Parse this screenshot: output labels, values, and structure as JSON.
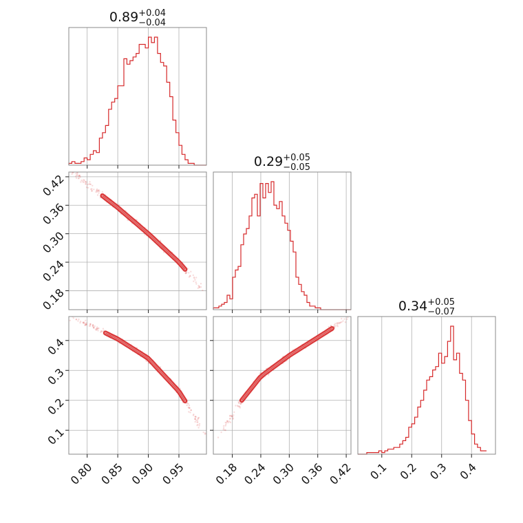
{
  "colors": {
    "accent": "#d62728",
    "grid": "#b0b0b0",
    "frame": "#888888"
  },
  "chart_data": {
    "type": "corner",
    "parameters": [
      {
        "summary": {
          "median": "0.89",
          "plus": "+0.04",
          "minus": "−0.04"
        },
        "range": [
          0.77,
          0.995
        ],
        "ticks": [
          0.8,
          0.85,
          0.9,
          0.95
        ],
        "tick_labels": [
          "0.80",
          "0.85",
          "0.90",
          "0.95"
        ],
        "hist": {
          "start": 0.77,
          "bin_width": 0.005,
          "counts": [
            1,
            2,
            1,
            1,
            2,
            4,
            3,
            6,
            8,
            7,
            15,
            18,
            22,
            31,
            35,
            37,
            44,
            44,
            59,
            56,
            58,
            60,
            62,
            67,
            67,
            65,
            71,
            68,
            71,
            62,
            57,
            55,
            46,
            38,
            25,
            18,
            11,
            6,
            3,
            1,
            1,
            0,
            0,
            0,
            0
          ]
        }
      },
      {
        "summary": {
          "median": "0.29",
          "plus": "+0.05",
          "minus": "−0.05"
        },
        "range": [
          0.14,
          0.43
        ],
        "ticks": [
          0.18,
          0.24,
          0.3,
          0.36,
          0.42
        ],
        "tick_labels": [
          "0.18",
          "0.24",
          "0.30",
          "0.36",
          "0.42"
        ],
        "hist": {
          "start": 0.14,
          "bin_width": 0.0058,
          "counts": [
            1,
            1,
            2,
            3,
            4,
            8,
            6,
            18,
            22,
            24,
            36,
            42,
            45,
            52,
            62,
            64,
            52,
            70,
            62,
            70,
            65,
            71,
            58,
            56,
            60,
            52,
            48,
            44,
            38,
            32,
            18,
            14,
            10,
            8,
            4,
            2,
            2,
            1,
            1,
            0,
            0,
            0,
            0,
            0,
            0,
            0,
            0,
            0,
            0,
            0
          ]
        }
      },
      {
        "summary": {
          "median": "0.34",
          "plus": "+0.05",
          "minus": "−0.07"
        },
        "range": [
          0.02,
          0.48
        ],
        "ticks": [
          0.1,
          0.2,
          0.3,
          0.4
        ],
        "tick_labels": [
          "0.1",
          "0.2",
          "0.3",
          "0.4"
        ],
        "hist": {
          "start": 0.02,
          "bin_width": 0.01,
          "counts": [
            0,
            0,
            0,
            1,
            1,
            1,
            1,
            2,
            1,
            2,
            3,
            3,
            4,
            4,
            6,
            8,
            10,
            16,
            18,
            22,
            28,
            32,
            38,
            44,
            46,
            50,
            52,
            60,
            54,
            58,
            67,
            76,
            56,
            60,
            48,
            44,
            32,
            20,
            12,
            6,
            4,
            2,
            2
          ]
        }
      }
    ],
    "joint": [
      {
        "x_param": 0,
        "y_param": 1,
        "relation": {
          "x": [
            0.775,
            0.8,
            0.85,
            0.9,
            0.95,
            0.99
          ],
          "y": [
            0.43,
            0.405,
            0.355,
            0.3,
            0.24,
            0.18
          ]
        },
        "contour_extent": {
          "x": [
            0.825,
            0.96
          ],
          "y": [
            0.38,
            0.205
          ]
        }
      },
      {
        "x_param": 0,
        "y_param": 2,
        "relation": {
          "x": [
            0.775,
            0.8,
            0.85,
            0.9,
            0.95,
            0.975,
            0.995
          ],
          "y": [
            0.475,
            0.455,
            0.405,
            0.34,
            0.23,
            0.15,
            0.08
          ]
        },
        "contour_extent": {
          "x": [
            0.83,
            0.96
          ],
          "y": [
            0.42,
            0.22
          ]
        }
      },
      {
        "x_param": 1,
        "y_param": 2,
        "relation": {
          "x": [
            0.15,
            0.18,
            0.2,
            0.24,
            0.3,
            0.36,
            0.39,
            0.42
          ],
          "y": [
            0.08,
            0.15,
            0.2,
            0.28,
            0.35,
            0.41,
            0.44,
            0.475
          ]
        },
        "contour_extent": {
          "x": [
            0.2,
            0.39
          ],
          "y": [
            0.2,
            0.44
          ]
        }
      }
    ],
    "grid": true
  }
}
